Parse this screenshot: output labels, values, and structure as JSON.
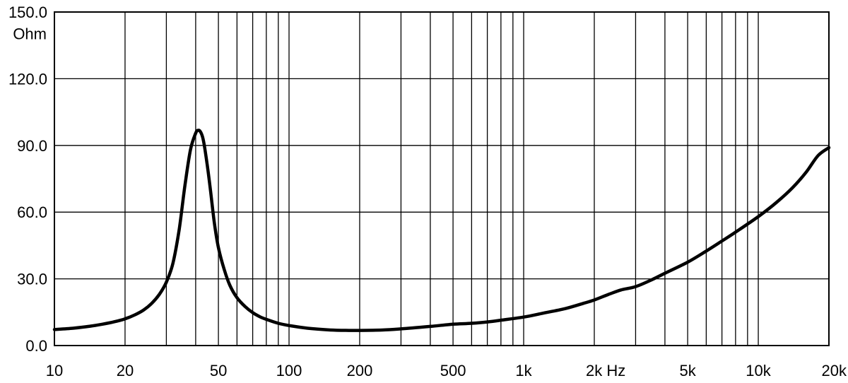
{
  "chart_data": {
    "type": "line",
    "title": "",
    "xlabel": "",
    "ylabel": "",
    "x_scale": "log",
    "xlim": [
      10,
      20000
    ],
    "ylim": [
      0,
      150
    ],
    "grid": true,
    "y_unit_label": "Ohm",
    "y_ticks": [
      {
        "value": 0,
        "label": "0.0"
      },
      {
        "value": 30,
        "label": "30.0"
      },
      {
        "value": 60,
        "label": "60.0"
      },
      {
        "value": 90,
        "label": "90.0"
      },
      {
        "value": 120,
        "label": "120.0"
      },
      {
        "value": 150,
        "label": "150.0"
      }
    ],
    "x_ticks": [
      {
        "value": 10,
        "label": "10"
      },
      {
        "value": 20,
        "label": "20"
      },
      {
        "value": 50,
        "label": "50"
      },
      {
        "value": 100,
        "label": "100"
      },
      {
        "value": 200,
        "label": "200"
      },
      {
        "value": 500,
        "label": "500"
      },
      {
        "value": 1000,
        "label": "1k"
      },
      {
        "value": 2000,
        "label": "2k Hz"
      },
      {
        "value": 5000,
        "label": "5k"
      },
      {
        "value": 10000,
        "label": "10k"
      },
      {
        "value": 20000,
        "label": "20k"
      }
    ],
    "x_minor_grid": [
      30,
      40,
      60,
      70,
      80,
      90,
      300,
      400,
      600,
      700,
      800,
      900,
      3000,
      4000,
      6000,
      7000,
      8000,
      9000
    ],
    "series": [
      {
        "name": "",
        "color": "#000000",
        "points": [
          [
            10,
            7.2
          ],
          [
            12,
            7.8
          ],
          [
            14,
            8.6
          ],
          [
            16,
            9.6
          ],
          [
            18,
            10.7
          ],
          [
            20,
            12.0
          ],
          [
            22,
            13.8
          ],
          [
            24,
            16.0
          ],
          [
            26,
            19.0
          ],
          [
            28,
            23.0
          ],
          [
            30,
            28.5
          ],
          [
            32,
            37.0
          ],
          [
            34,
            52.0
          ],
          [
            36,
            72.0
          ],
          [
            38,
            88.0
          ],
          [
            40,
            95.5
          ],
          [
            41,
            96.8
          ],
          [
            42,
            96.0
          ],
          [
            43,
            93.0
          ],
          [
            44,
            87.0
          ],
          [
            46,
            72.0
          ],
          [
            48,
            55.5
          ],
          [
            50,
            44.0
          ],
          [
            53,
            34.0
          ],
          [
            56,
            27.0
          ],
          [
            60,
            21.5
          ],
          [
            65,
            17.5
          ],
          [
            70,
            14.8
          ],
          [
            75,
            13.0
          ],
          [
            80,
            11.8
          ],
          [
            90,
            10.0
          ],
          [
            100,
            9.0
          ],
          [
            120,
            7.8
          ],
          [
            150,
            7.0
          ],
          [
            180,
            6.8
          ],
          [
            200,
            6.8
          ],
          [
            250,
            7.0
          ],
          [
            300,
            7.5
          ],
          [
            400,
            8.6
          ],
          [
            500,
            9.6
          ],
          [
            600,
            10.0
          ],
          [
            700,
            10.6
          ],
          [
            800,
            11.4
          ],
          [
            1000,
            12.8
          ],
          [
            1200,
            14.5
          ],
          [
            1500,
            16.6
          ],
          [
            1800,
            19.0
          ],
          [
            2000,
            20.5
          ],
          [
            2300,
            23.0
          ],
          [
            2600,
            25.0
          ],
          [
            3000,
            26.5
          ],
          [
            3500,
            29.5
          ],
          [
            4000,
            32.5
          ],
          [
            5000,
            37.5
          ],
          [
            6000,
            42.5
          ],
          [
            7000,
            47.0
          ],
          [
            8000,
            51.0
          ],
          [
            10000,
            58.0
          ],
          [
            12000,
            64.5
          ],
          [
            14000,
            71.0
          ],
          [
            16000,
            78.0
          ],
          [
            18000,
            85.5
          ],
          [
            20000,
            89.0
          ]
        ]
      }
    ]
  }
}
